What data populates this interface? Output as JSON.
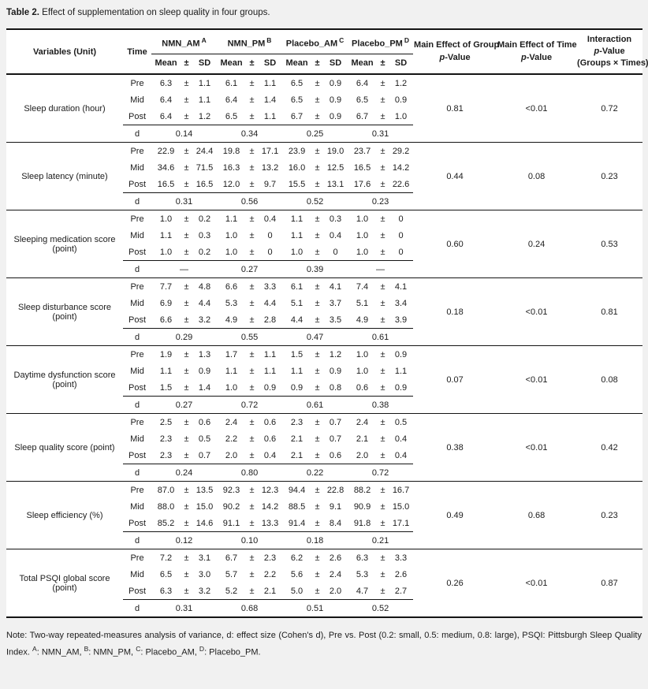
{
  "title": {
    "label": "Table 2.",
    "text": "Effect of supplementation on sleep quality in four groups."
  },
  "header": {
    "variables_label": "Variables (Unit)",
    "time_label": "Time",
    "groups": [
      {
        "name": "NMN_AM",
        "sup": "A"
      },
      {
        "name": "NMN_PM",
        "sup": "B"
      },
      {
        "name": "Placebo_AM",
        "sup": "C"
      },
      {
        "name": "Placebo_PM",
        "sup": "D"
      }
    ],
    "stat_cols": [
      "Mean",
      "±",
      "SD"
    ],
    "plus_minus": "±",
    "d_label": "d",
    "p_group_title": "Main Effect of Group",
    "p_time_title": "Main Effect of Time",
    "interaction_title": "Interaction",
    "interaction_sub": "(Groups × Times)",
    "p_value_italic": "p",
    "p_value_rest": "-Value"
  },
  "variables": [
    {
      "name": "Sleep duration (hour)",
      "rows": [
        {
          "time": "Pre",
          "values": [
            [
              "6.3",
              "1.1"
            ],
            [
              "6.1",
              "1.1"
            ],
            [
              "6.5",
              "0.9"
            ],
            [
              "6.4",
              "1.2"
            ]
          ]
        },
        {
          "time": "Mid",
          "values": [
            [
              "6.4",
              "1.1"
            ],
            [
              "6.4",
              "1.4"
            ],
            [
              "6.5",
              "0.9"
            ],
            [
              "6.5",
              "0.9"
            ]
          ]
        },
        {
          "time": "Post",
          "values": [
            [
              "6.4",
              "1.2"
            ],
            [
              "6.5",
              "1.1"
            ],
            [
              "6.7",
              "0.9"
            ],
            [
              "6.7",
              "1.0"
            ]
          ]
        }
      ],
      "d": [
        "0.14",
        "0.34",
        "0.25",
        "0.31"
      ],
      "p_group": "0.81",
      "p_time": "<0.01",
      "p_interaction": "0.72"
    },
    {
      "name": "Sleep latency (minute)",
      "rows": [
        {
          "time": "Pre",
          "values": [
            [
              "22.9",
              "24.4"
            ],
            [
              "19.8",
              "17.1"
            ],
            [
              "23.9",
              "19.0"
            ],
            [
              "23.7",
              "29.2"
            ]
          ]
        },
        {
          "time": "Mid",
          "values": [
            [
              "34.6",
              "71.5"
            ],
            [
              "16.3",
              "13.2"
            ],
            [
              "16.0",
              "12.5"
            ],
            [
              "16.5",
              "14.2"
            ]
          ]
        },
        {
          "time": "Post",
          "values": [
            [
              "16.5",
              "16.5"
            ],
            [
              "12.0",
              "9.7"
            ],
            [
              "15.5",
              "13.1"
            ],
            [
              "17.6",
              "22.6"
            ]
          ]
        }
      ],
      "d": [
        "0.31",
        "0.56",
        "0.52",
        "0.23"
      ],
      "p_group": "0.44",
      "p_time": "0.08",
      "p_interaction": "0.23"
    },
    {
      "name": "Sleeping medication score (point)",
      "rows": [
        {
          "time": "Pre",
          "values": [
            [
              "1.0",
              "0.2"
            ],
            [
              "1.1",
              "0.4"
            ],
            [
              "1.1",
              "0.3"
            ],
            [
              "1.0",
              "0"
            ]
          ]
        },
        {
          "time": "Mid",
          "values": [
            [
              "1.1",
              "0.3"
            ],
            [
              "1.0",
              "0"
            ],
            [
              "1.1",
              "0.4"
            ],
            [
              "1.0",
              "0"
            ]
          ]
        },
        {
          "time": "Post",
          "values": [
            [
              "1.0",
              "0.2"
            ],
            [
              "1.0",
              "0"
            ],
            [
              "1.0",
              "0"
            ],
            [
              "1.0",
              "0"
            ]
          ]
        }
      ],
      "d": [
        "—",
        "0.27",
        "0.39",
        "—"
      ],
      "p_group": "0.60",
      "p_time": "0.24",
      "p_interaction": "0.53"
    },
    {
      "name": "Sleep disturbance score (point)",
      "rows": [
        {
          "time": "Pre",
          "values": [
            [
              "7.7",
              "4.8"
            ],
            [
              "6.6",
              "3.3"
            ],
            [
              "6.1",
              "4.1"
            ],
            [
              "7.4",
              "4.1"
            ]
          ]
        },
        {
          "time": "Mid",
          "values": [
            [
              "6.9",
              "4.4"
            ],
            [
              "5.3",
              "4.4"
            ],
            [
              "5.1",
              "3.7"
            ],
            [
              "5.1",
              "3.4"
            ]
          ]
        },
        {
          "time": "Post",
          "values": [
            [
              "6.6",
              "3.2"
            ],
            [
              "4.9",
              "2.8"
            ],
            [
              "4.4",
              "3.5"
            ],
            [
              "4.9",
              "3.9"
            ]
          ]
        }
      ],
      "d": [
        "0.29",
        "0.55",
        "0.47",
        "0.61"
      ],
      "p_group": "0.18",
      "p_time": "<0.01",
      "p_interaction": "0.81"
    },
    {
      "name": "Daytime dysfunction score (point)",
      "rows": [
        {
          "time": "Pre",
          "values": [
            [
              "1.9",
              "1.3"
            ],
            [
              "1.7",
              "1.1"
            ],
            [
              "1.5",
              "1.2"
            ],
            [
              "1.0",
              "0.9"
            ]
          ]
        },
        {
          "time": "Mid",
          "values": [
            [
              "1.1",
              "0.9"
            ],
            [
              "1.1",
              "1.1"
            ],
            [
              "1.1",
              "0.9"
            ],
            [
              "1.0",
              "1.1"
            ]
          ]
        },
        {
          "time": "Post",
          "values": [
            [
              "1.5",
              "1.4"
            ],
            [
              "1.0",
              "0.9"
            ],
            [
              "0.9",
              "0.8"
            ],
            [
              "0.6",
              "0.9"
            ]
          ]
        }
      ],
      "d": [
        "0.27",
        "0.72",
        "0.61",
        "0.38"
      ],
      "p_group": "0.07",
      "p_time": "<0.01",
      "p_interaction": "0.08"
    },
    {
      "name": "Sleep quality score (point)",
      "rows": [
        {
          "time": "Pre",
          "values": [
            [
              "2.5",
              "0.6"
            ],
            [
              "2.4",
              "0.6"
            ],
            [
              "2.3",
              "0.7"
            ],
            [
              "2.4",
              "0.5"
            ]
          ]
        },
        {
          "time": "Mid",
          "values": [
            [
              "2.3",
              "0.5"
            ],
            [
              "2.2",
              "0.6"
            ],
            [
              "2.1",
              "0.7"
            ],
            [
              "2.1",
              "0.4"
            ]
          ]
        },
        {
          "time": "Post",
          "values": [
            [
              "2.3",
              "0.7"
            ],
            [
              "2.0",
              "0.4"
            ],
            [
              "2.1",
              "0.6"
            ],
            [
              "2.0",
              "0.4"
            ]
          ]
        }
      ],
      "d": [
        "0.24",
        "0.80",
        "0.22",
        "0.72"
      ],
      "p_group": "0.38",
      "p_time": "<0.01",
      "p_interaction": "0.42"
    },
    {
      "name": "Sleep efficiency (%)",
      "rows": [
        {
          "time": "Pre",
          "values": [
            [
              "87.0",
              "13.5"
            ],
            [
              "92.3",
              "12.3"
            ],
            [
              "94.4",
              "22.8"
            ],
            [
              "88.2",
              "16.7"
            ]
          ]
        },
        {
          "time": "Mid",
          "values": [
            [
              "88.0",
              "15.0"
            ],
            [
              "90.2",
              "14.2"
            ],
            [
              "88.5",
              "9.1"
            ],
            [
              "90.9",
              "15.0"
            ]
          ]
        },
        {
          "time": "Post",
          "values": [
            [
              "85.2",
              "14.6"
            ],
            [
              "91.1",
              "13.3"
            ],
            [
              "91.4",
              "8.4"
            ],
            [
              "91.8",
              "17.1"
            ]
          ]
        }
      ],
      "d": [
        "0.12",
        "0.10",
        "0.18",
        "0.21"
      ],
      "p_group": "0.49",
      "p_time": "0.68",
      "p_interaction": "0.23"
    },
    {
      "name": "Total PSQI global score (point)",
      "rows": [
        {
          "time": "Pre",
          "values": [
            [
              "7.2",
              "3.1"
            ],
            [
              "6.7",
              "2.3"
            ],
            [
              "6.2",
              "2.6"
            ],
            [
              "6.3",
              "3.3"
            ]
          ]
        },
        {
          "time": "Mid",
          "values": [
            [
              "6.5",
              "3.0"
            ],
            [
              "5.7",
              "2.2"
            ],
            [
              "5.6",
              "2.4"
            ],
            [
              "5.3",
              "2.6"
            ]
          ]
        },
        {
          "time": "Post",
          "values": [
            [
              "6.3",
              "3.2"
            ],
            [
              "5.2",
              "2.1"
            ],
            [
              "5.0",
              "2.0"
            ],
            [
              "4.7",
              "2.7"
            ]
          ]
        }
      ],
      "d": [
        "0.31",
        "0.68",
        "0.51",
        "0.52"
      ],
      "p_group": "0.26",
      "p_time": "<0.01",
      "p_interaction": "0.87"
    }
  ],
  "note": {
    "prefix": "Note: Two-way repeated-measures analysis of variance, d: effect size (Cohen's d), Pre vs. Post (0.2: small, 0.5: medium, 0.8: large), PSQI: Pittsburgh Sleep Quality Index.",
    "definitions": [
      {
        "sup": "A",
        "label": "NMN_AM"
      },
      {
        "sup": "B",
        "label": "NMN_PM"
      },
      {
        "sup": "C",
        "label": "Placebo_AM"
      },
      {
        "sup": "D",
        "label": "Placebo_PM"
      }
    ]
  },
  "colors": {
    "page_bg": "#f1f1f1",
    "table_bg": "#ffffff",
    "border": "#141414",
    "text": "#1c1c1c"
  }
}
